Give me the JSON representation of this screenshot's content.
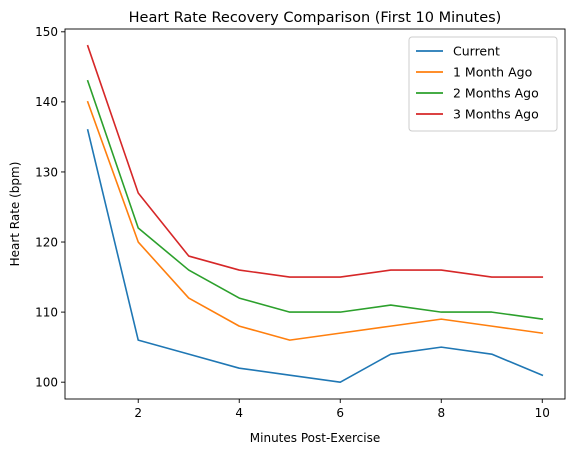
{
  "chart_data": {
    "type": "line",
    "title": "Heart Rate Recovery Comparison (First 10 Minutes)",
    "xlabel": "Minutes Post-Exercise",
    "ylabel": "Heart Rate (bpm)",
    "x": [
      1,
      2,
      3,
      4,
      5,
      6,
      7,
      8,
      9,
      10
    ],
    "xlim": [
      0.55,
      10.45
    ],
    "ylim": [
      97.6,
      150.4
    ],
    "xticks": [
      2,
      4,
      6,
      8,
      10
    ],
    "yticks": [
      100,
      110,
      120,
      130,
      140,
      150
    ],
    "grid": false,
    "legend_position": "top-right",
    "series": [
      {
        "name": "Current",
        "color": "#1f77b4",
        "values": [
          136,
          106,
          104,
          102,
          101,
          100,
          104,
          105,
          104,
          101
        ]
      },
      {
        "name": "1 Month Ago",
        "color": "#ff7f0e",
        "values": [
          140,
          120,
          112,
          108,
          106,
          107,
          108,
          109,
          108,
          107
        ]
      },
      {
        "name": "2 Months Ago",
        "color": "#2ca02c",
        "values": [
          143,
          122,
          116,
          112,
          110,
          110,
          111,
          110,
          110,
          109
        ]
      },
      {
        "name": "3 Months Ago",
        "color": "#d62728",
        "values": [
          148,
          127,
          118,
          116,
          115,
          115,
          116,
          116,
          115,
          115
        ]
      }
    ]
  }
}
